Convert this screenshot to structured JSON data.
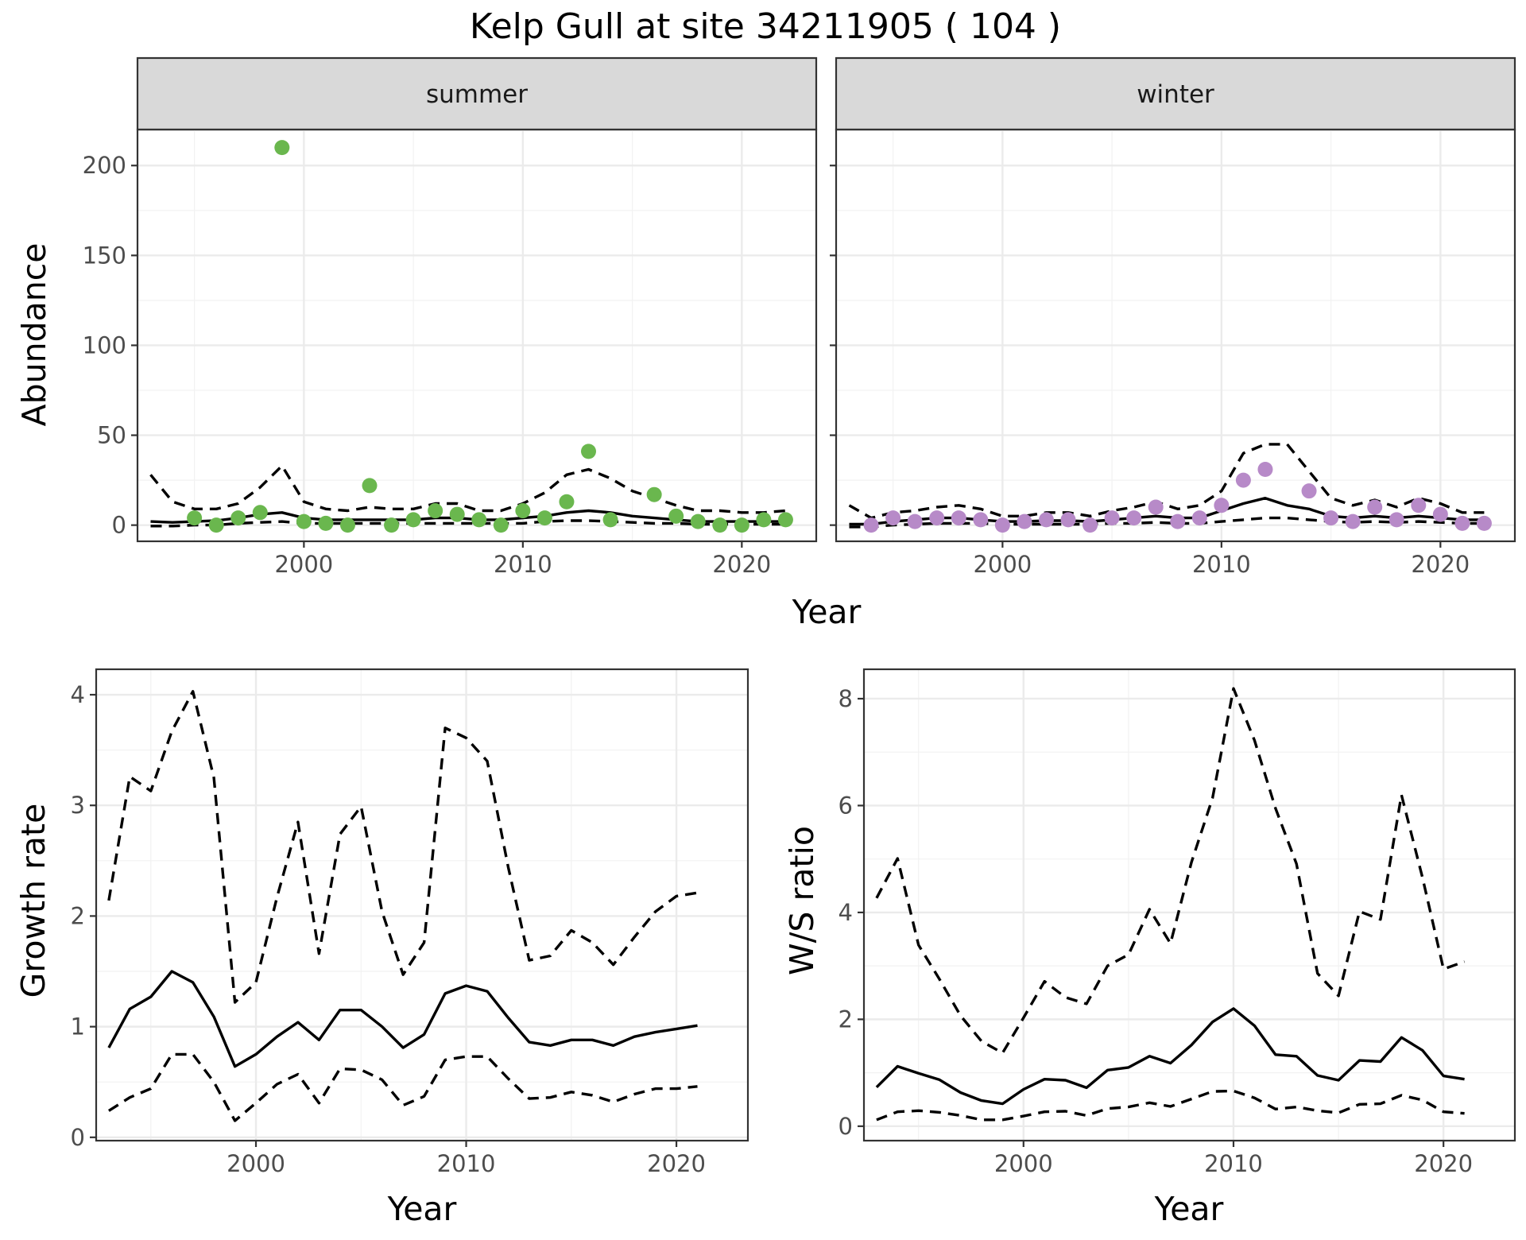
{
  "chart_data": {
    "title": "Kelp Gull at site 34211905 ( 104 )",
    "panels": [
      {
        "id": "abundance-summer",
        "type": "scatter",
        "strip": "summer",
        "xlabel": "Year",
        "ylabel": "Abundance",
        "xlim": [
          1992.4,
          2023.4
        ],
        "ylim": [
          -9,
          220
        ],
        "xticks": [
          2000,
          2010,
          2020
        ],
        "yticks": [
          0,
          50,
          100,
          150,
          200
        ],
        "point_color": "#6ab74e",
        "points": {
          "x": [
            1995,
            1996,
            1997,
            1998,
            1999,
            2000,
            2001,
            2002,
            2003,
            2004,
            2005,
            2006,
            2007,
            2008,
            2009,
            2010,
            2011,
            2012,
            2013,
            2014,
            2016,
            2017,
            2018,
            2019,
            2020,
            2021,
            2022
          ],
          "y": [
            4,
            0,
            4,
            7,
            210,
            2,
            1,
            0,
            22,
            0,
            3,
            8,
            6,
            3,
            0,
            8,
            4,
            13,
            41,
            3,
            17,
            5,
            2,
            0,
            0,
            3,
            3
          ]
        },
        "series": [
          {
            "name": "fit",
            "style": "solid",
            "x": [
              1993,
              1994,
              1995,
              1996,
              1997,
              1998,
              1999,
              2000,
              2001,
              2002,
              2003,
              2004,
              2005,
              2006,
              2007,
              2008,
              2009,
              2010,
              2011,
              2012,
              2013,
              2014,
              2015,
              2016,
              2017,
              2018,
              2019,
              2020,
              2021,
              2022
            ],
            "y": [
              2,
              1.5,
              2,
              2.5,
              4,
              6,
              7,
              4,
              3,
              3,
              3,
              3,
              3,
              4,
              4,
              3,
              3,
              4,
              5,
              7,
              8,
              7,
              5,
              4,
              3,
              2,
              2,
              2,
              2,
              2
            ]
          },
          {
            "name": "upper",
            "style": "dashed",
            "x": [
              1993,
              1994,
              1995,
              1996,
              1997,
              1998,
              1999,
              2000,
              2001,
              2002,
              2003,
              2004,
              2005,
              2006,
              2007,
              2008,
              2009,
              2010,
              2011,
              2012,
              2013,
              2014,
              2015,
              2016,
              2017,
              2018,
              2019,
              2020,
              2021,
              2022
            ],
            "y": [
              28,
              13,
              9,
              9,
              12,
              21,
              33,
              13,
              9,
              8,
              10,
              9,
              9,
              12,
              12,
              8,
              8,
              12,
              18,
              28,
              31,
              26,
              19,
              15,
              11,
              8,
              8,
              7,
              7,
              8
            ]
          },
          {
            "name": "lower",
            "style": "dashed",
            "x": [
              1993,
              1994,
              1995,
              1996,
              1997,
              1998,
              1999,
              2000,
              2001,
              2002,
              2003,
              2004,
              2005,
              2006,
              2007,
              2008,
              2009,
              2010,
              2011,
              2012,
              2013,
              2014,
              2015,
              2016,
              2017,
              2018,
              2019,
              2020,
              2021,
              2022
            ],
            "y": [
              -0.5,
              -0.5,
              0,
              0,
              1,
              1.5,
              2,
              1,
              1,
              1,
              1,
              1,
              1,
              1,
              1,
              1,
              1,
              1,
              2,
              2.5,
              2.5,
              2,
              1.5,
              1,
              1,
              0.5,
              0.5,
              0.5,
              0.5,
              0.5
            ]
          }
        ]
      },
      {
        "id": "abundance-winter",
        "type": "scatter",
        "strip": "winter",
        "xlabel": "Year",
        "ylabel": "Abundance",
        "xlim": [
          1992.4,
          2023.4
        ],
        "ylim": [
          -9,
          220
        ],
        "xticks": [
          2000,
          2010,
          2020
        ],
        "yticks": [
          0,
          50,
          100,
          150,
          200
        ],
        "point_color": "#b78ac8",
        "points": {
          "x": [
            1994,
            1995,
            1996,
            1997,
            1998,
            1999,
            2000,
            2001,
            2002,
            2003,
            2004,
            2005,
            2006,
            2007,
            2008,
            2009,
            2010,
            2011,
            2012,
            2014,
            2015,
            2016,
            2017,
            2018,
            2019,
            2020,
            2021,
            2022
          ],
          "y": [
            0,
            4,
            2,
            4,
            4,
            3,
            0,
            2,
            3,
            3,
            0,
            4,
            4,
            10,
            2,
            4,
            11,
            25,
            31,
            19,
            4,
            2,
            10,
            3,
            11,
            6,
            1,
            1
          ]
        },
        "series": [
          {
            "name": "fit",
            "style": "solid",
            "x": [
              1993,
              1994,
              1995,
              1996,
              1997,
              1998,
              1999,
              2000,
              2001,
              2002,
              2003,
              2004,
              2005,
              2006,
              2007,
              2008,
              2009,
              2010,
              2011,
              2012,
              2013,
              2014,
              2015,
              2016,
              2017,
              2018,
              2019,
              2020,
              2021,
              2022
            ],
            "y": [
              0.5,
              0.5,
              2,
              3,
              4,
              4,
              3,
              2,
              2,
              2.5,
              2.5,
              2,
              3,
              4,
              5,
              4,
              4,
              8,
              12,
              15,
              11,
              9,
              5,
              4,
              5,
              4,
              5,
              4,
              3,
              3
            ]
          },
          {
            "name": "upper",
            "style": "dashed",
            "x": [
              1993,
              1994,
              1995,
              1996,
              1997,
              1998,
              1999,
              2000,
              2001,
              2002,
              2003,
              2004,
              2005,
              2006,
              2007,
              2008,
              2009,
              2010,
              2011,
              2012,
              2013,
              2014,
              2015,
              2016,
              2017,
              2018,
              2019,
              2020,
              2021,
              2022
            ],
            "y": [
              11,
              4,
              7,
              8,
              10,
              11,
              9,
              5,
              5,
              7,
              7,
              5,
              8,
              10,
              13,
              9,
              11,
              19,
              40,
              45,
              45,
              30,
              15,
              11,
              14,
              10,
              15,
              12,
              7,
              7
            ]
          },
          {
            "name": "lower",
            "style": "dashed",
            "x": [
              1993,
              1994,
              1995,
              1996,
              1997,
              1998,
              1999,
              2000,
              2001,
              2002,
              2003,
              2004,
              2005,
              2006,
              2007,
              2008,
              2009,
              2010,
              2011,
              2012,
              2013,
              2014,
              2015,
              2016,
              2017,
              2018,
              2019,
              2020,
              2021,
              2022
            ],
            "y": [
              -1,
              -1,
              0,
              0.5,
              1,
              1,
              1,
              0.5,
              0.5,
              0.5,
              0.5,
              0.5,
              1,
              1,
              1.5,
              1,
              1,
              2,
              3,
              4,
              4,
              3,
              2,
              1.5,
              2,
              1.5,
              2,
              1.5,
              1,
              1
            ]
          }
        ]
      },
      {
        "id": "growth-rate",
        "type": "line",
        "xlabel": "Year",
        "ylabel": "Growth rate",
        "xlim": [
          1992.4,
          2023.4
        ],
        "ylim": [
          -0.03,
          4.23
        ],
        "xticks": [
          2000,
          2010,
          2020
        ],
        "yticks": [
          0,
          1,
          2,
          3,
          4
        ],
        "series": [
          {
            "name": "fit",
            "style": "solid",
            "x": [
              1993,
              1994,
              1995,
              1996,
              1997,
              1998,
              1999,
              2000,
              2001,
              2002,
              2003,
              2004,
              2005,
              2006,
              2007,
              2008,
              2009,
              2010,
              2011,
              2012,
              2013,
              2014,
              2015,
              2016,
              2017,
              2018,
              2019,
              2020,
              2021
            ],
            "y": [
              0.81,
              1.16,
              1.27,
              1.5,
              1.4,
              1.09,
              0.64,
              0.75,
              0.91,
              1.04,
              0.88,
              1.15,
              1.15,
              1.0,
              0.81,
              0.93,
              1.3,
              1.37,
              1.32,
              1.08,
              0.86,
              0.83,
              0.88,
              0.88,
              0.83,
              0.91,
              0.95,
              0.98,
              1.01
            ]
          },
          {
            "name": "upper",
            "style": "dashed",
            "x": [
              1993,
              1994,
              1995,
              1996,
              1997,
              1998,
              1999,
              2000,
              2001,
              2002,
              2003,
              2004,
              2005,
              2006,
              2007,
              2008,
              2009,
              2010,
              2011,
              2012,
              2013,
              2014,
              2015,
              2016,
              2017,
              2018,
              2019,
              2020,
              2021
            ],
            "y": [
              2.14,
              3.26,
              3.13,
              3.67,
              4.03,
              3.25,
              1.22,
              1.4,
              2.17,
              2.85,
              1.66,
              2.74,
              2.99,
              2.04,
              1.47,
              1.76,
              3.7,
              3.61,
              3.4,
              2.44,
              1.6,
              1.64,
              1.87,
              1.76,
              1.56,
              1.81,
              2.04,
              2.18,
              2.21
            ]
          },
          {
            "name": "lower",
            "style": "dashed",
            "x": [
              1993,
              1994,
              1995,
              1996,
              1997,
              1998,
              1999,
              2000,
              2001,
              2002,
              2003,
              2004,
              2005,
              2006,
              2007,
              2008,
              2009,
              2010,
              2011,
              2012,
              2013,
              2014,
              2015,
              2016,
              2017,
              2018,
              2019,
              2020,
              2021
            ],
            "y": [
              0.24,
              0.36,
              0.44,
              0.75,
              0.75,
              0.5,
              0.15,
              0.31,
              0.48,
              0.57,
              0.31,
              0.62,
              0.61,
              0.52,
              0.29,
              0.37,
              0.7,
              0.73,
              0.73,
              0.53,
              0.35,
              0.36,
              0.41,
              0.38,
              0.32,
              0.39,
              0.44,
              0.44,
              0.46
            ]
          }
        ]
      },
      {
        "id": "ws-ratio",
        "type": "line",
        "xlabel": "Year",
        "ylabel": "W/S ratio",
        "xlim": [
          1992.4,
          2023.4
        ],
        "ylim": [
          -0.27,
          8.55
        ],
        "xticks": [
          2000,
          2010,
          2020
        ],
        "yticks": [
          0,
          2,
          4,
          6,
          8
        ],
        "series": [
          {
            "name": "fit",
            "style": "solid",
            "x": [
              1993,
              1994,
              1995,
              1996,
              1997,
              1998,
              1999,
              2000,
              2001,
              2002,
              2003,
              2004,
              2005,
              2006,
              2007,
              2008,
              2009,
              2010,
              2011,
              2012,
              2013,
              2014,
              2015,
              2016,
              2017,
              2018,
              2019,
              2020,
              2021
            ],
            "y": [
              0.73,
              1.12,
              0.99,
              0.87,
              0.63,
              0.48,
              0.42,
              0.69,
              0.88,
              0.86,
              0.72,
              1.05,
              1.1,
              1.31,
              1.18,
              1.52,
              1.95,
              2.2,
              1.88,
              1.34,
              1.31,
              0.95,
              0.86,
              1.23,
              1.21,
              1.66,
              1.42,
              0.94,
              0.88
            ]
          },
          {
            "name": "upper",
            "style": "dashed",
            "x": [
              1993,
              1994,
              1995,
              1996,
              1997,
              1998,
              1999,
              2000,
              2001,
              2002,
              2003,
              2004,
              2005,
              2006,
              2007,
              2008,
              2009,
              2010,
              2011,
              2012,
              2013,
              2014,
              2015,
              2016,
              2017,
              2018,
              2019,
              2020,
              2021
            ],
            "y": [
              4.27,
              5.01,
              3.39,
              2.75,
              2.07,
              1.59,
              1.37,
              2.03,
              2.71,
              2.41,
              2.29,
              3.0,
              3.21,
              4.06,
              3.42,
              4.94,
              6.14,
              8.19,
              7.22,
              5.95,
              4.91,
              2.86,
              2.44,
              4.02,
              3.87,
              6.2,
              4.65,
              2.94,
              3.08
            ]
          },
          {
            "name": "lower",
            "style": "dashed",
            "x": [
              1993,
              1994,
              1995,
              1996,
              1997,
              1998,
              1999,
              2000,
              2001,
              2002,
              2003,
              2004,
              2005,
              2006,
              2007,
              2008,
              2009,
              2010,
              2011,
              2012,
              2013,
              2014,
              2015,
              2016,
              2017,
              2018,
              2019,
              2020,
              2021
            ],
            "y": [
              0.12,
              0.27,
              0.29,
              0.26,
              0.2,
              0.12,
              0.12,
              0.19,
              0.27,
              0.28,
              0.2,
              0.33,
              0.36,
              0.44,
              0.37,
              0.51,
              0.65,
              0.66,
              0.53,
              0.32,
              0.36,
              0.29,
              0.25,
              0.41,
              0.42,
              0.58,
              0.49,
              0.27,
              0.24
            ]
          }
        ]
      }
    ]
  }
}
